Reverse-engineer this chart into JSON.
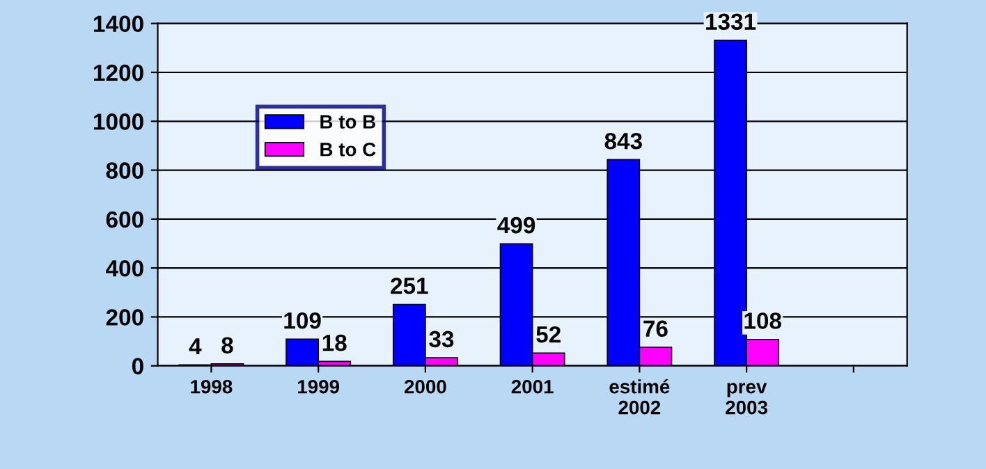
{
  "chart_data": {
    "type": "bar",
    "categories": [
      "1998",
      "1999",
      "2000",
      "2001",
      "estimé\n2002",
      "prev\n2003",
      null
    ],
    "series": [
      {
        "name": "B to B",
        "color": "#0000ff",
        "values": [
          4,
          109,
          251,
          499,
          843,
          1331,
          null
        ]
      },
      {
        "name": "B to C",
        "color": "#ff00ff",
        "values": [
          8,
          18,
          33,
          52,
          76,
          108,
          null
        ]
      }
    ],
    "ylim": [
      0,
      1400
    ],
    "yticks": [
      0,
      200,
      400,
      600,
      800,
      1000,
      1200,
      1400
    ],
    "grid": "y",
    "legend": "top left",
    "data_labels": true
  }
}
